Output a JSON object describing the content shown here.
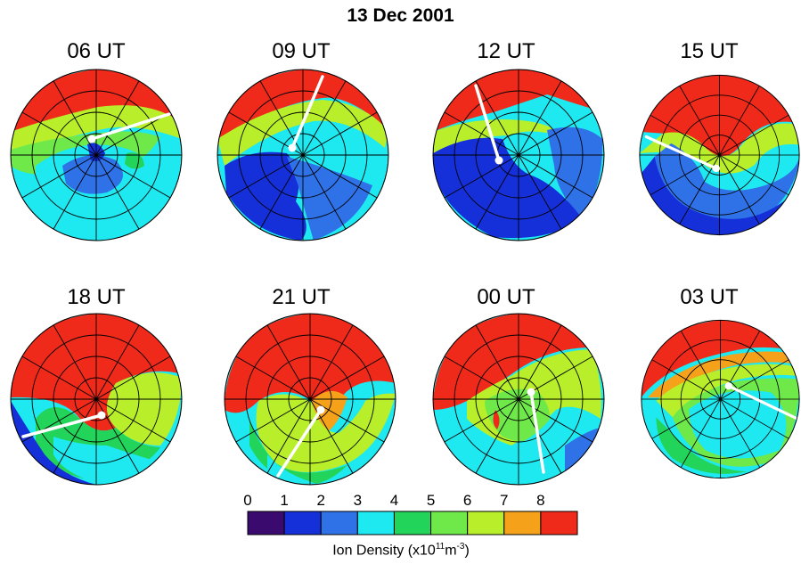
{
  "title": "13 Dec 2001",
  "panels": [
    {
      "label": "06 UT"
    },
    {
      "label": "09 UT"
    },
    {
      "label": "12 UT"
    },
    {
      "label": "15 UT"
    },
    {
      "label": "18 UT"
    },
    {
      "label": "21 UT"
    },
    {
      "label": "00 UT"
    },
    {
      "label": "03 UT"
    }
  ],
  "colorbar": {
    "ticks": [
      "0",
      "1",
      "2",
      "3",
      "4",
      "5",
      "6",
      "7",
      "8"
    ],
    "colors": [
      "#3b0a6e",
      "#1530d8",
      "#2f72e8",
      "#1ee8f0",
      "#22d45a",
      "#6fe84a",
      "#b8ef2a",
      "#f5a21a",
      "#ef2a1a"
    ],
    "title_main": "Ion Density (x10",
    "title_sup1": "11",
    "title_mid": "m",
    "title_sup2": "-3",
    "title_end": ")"
  },
  "line_color": "#ffffff"
}
